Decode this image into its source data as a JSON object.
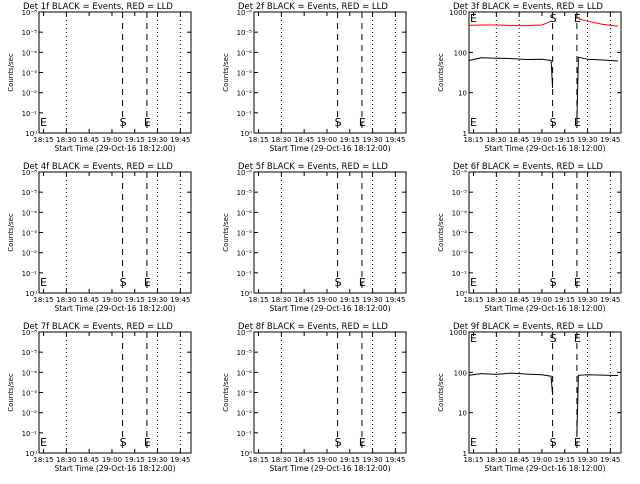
{
  "colors": {
    "background": "#ffffff",
    "events": "#000000",
    "lld": "#ff0000"
  },
  "chart_data": [
    {
      "type": "line",
      "title": "Det 1f BLACK = Events, RED = LLD",
      "xlabel": "Start Time (29-Oct-16 18:12:00)",
      "ylabel": "Counts/sec",
      "x_ticks": [
        "18:15",
        "18:30",
        "18:45",
        "19:00",
        "19:15",
        "19:30",
        "19:45"
      ],
      "y_ticks": [
        "10⁰",
        "10⁻¹",
        "10⁻²",
        "10⁻³",
        "10⁻⁴",
        "10⁻⁵",
        "10⁻⁶"
      ],
      "y_scale": "log",
      "xlim": [
        "18:12",
        "19:52"
      ],
      "ylim": [
        1,
        1000000
      ],
      "grid": false,
      "dotted_lines_x": [
        "18:30",
        "19:30",
        "19:45"
      ],
      "dashed_lines_x": [
        "19:07",
        "19:23"
      ],
      "markers": [
        {
          "label": "E",
          "x": "18:12"
        },
        {
          "label": "S",
          "x": "19:07"
        },
        {
          "label": "E",
          "x": "19:23"
        }
      ],
      "series": []
    },
    {
      "type": "line",
      "title": "Det 2f BLACK = Events, RED = LLD",
      "xlabel": "Start Time (29-Oct-16 18:12:00)",
      "ylabel": "Counts/sec",
      "x_ticks": [
        "18:15",
        "18:30",
        "18:45",
        "19:00",
        "19:15",
        "19:30",
        "19:45"
      ],
      "y_ticks": [
        "10⁰",
        "10⁻¹",
        "10⁻²",
        "10⁻³",
        "10⁻⁴",
        "10⁻⁵",
        "10⁻⁶"
      ],
      "y_scale": "log",
      "xlim": [
        "18:12",
        "19:52"
      ],
      "ylim": [
        1,
        1000000
      ],
      "grid": false,
      "dotted_lines_x": [
        "18:30",
        "19:30",
        "19:45"
      ],
      "dashed_lines_x": [
        "19:07",
        "19:23"
      ],
      "markers": [
        {
          "label": "S",
          "x": "19:07"
        },
        {
          "label": "E",
          "x": "19:23"
        }
      ],
      "series": []
    },
    {
      "type": "line",
      "title": "Det 3f BLACK = Events, RED = LLD",
      "xlabel": "Start Time (29-Oct-16 18:12:00)",
      "ylabel": "Counts/sec",
      "x_ticks": [
        "18:15",
        "18:30",
        "18:45",
        "19:00",
        "19:15",
        "19:30",
        "19:45"
      ],
      "y_ticks": [
        "1",
        "10",
        "100",
        "1000"
      ],
      "y_scale": "log",
      "xlim": [
        "18:12",
        "19:52"
      ],
      "ylim": [
        1,
        1200
      ],
      "grid": false,
      "dotted_lines_x": [
        "18:30",
        "18:45",
        "19:30",
        "19:45"
      ],
      "dashed_lines_x": [
        "19:07",
        "19:23"
      ],
      "markers": [
        {
          "label": "E",
          "x": "18:12"
        },
        {
          "label": "S",
          "x": "19:07"
        },
        {
          "label": "E",
          "x": "19:23"
        }
      ],
      "series": [
        {
          "color": "#ff0000",
          "segments": [
            {
              "x": [
                "18:12",
                "18:20",
                "18:30",
                "18:40",
                "18:50",
                "19:00",
                "19:06"
              ],
              "y": [
                550,
                560,
                560,
                540,
                540,
                560,
                700
              ]
            },
            {
              "x": [
                "19:24",
                "19:30",
                "19:40",
                "19:50"
              ],
              "y": [
                800,
                700,
                580,
                520
              ]
            }
          ]
        },
        {
          "color": "#000000",
          "segments": [
            {
              "x": [
                "18:12",
                "18:20",
                "18:30",
                "18:40",
                "18:50",
                "19:00",
                "19:06",
                "19:07"
              ],
              "y": [
                70,
                82,
                80,
                78,
                74,
                75,
                70,
                14
              ]
            },
            {
              "x": [
                "19:23",
                "19:24",
                "19:30",
                "19:40",
                "19:50"
              ],
              "y": [
                2,
                85,
                75,
                72,
                68
              ]
            }
          ]
        }
      ]
    },
    {
      "type": "line",
      "title": "Det 4f BLACK = Events, RED = LLD",
      "xlabel": "Start Time (29-Oct-16 18:12:00)",
      "ylabel": "Counts/sec",
      "x_ticks": [
        "18:15",
        "18:30",
        "18:45",
        "19:00",
        "19:15",
        "19:30",
        "19:45"
      ],
      "y_ticks": [
        "10⁰",
        "10⁻¹",
        "10⁻²",
        "10⁻³",
        "10⁻⁴",
        "10⁻⁵",
        "10⁻⁶"
      ],
      "y_scale": "log",
      "xlim": [
        "18:12",
        "19:52"
      ],
      "ylim": [
        1,
        1000000
      ],
      "grid": false,
      "dotted_lines_x": [
        "18:30",
        "19:30",
        "19:45"
      ],
      "dashed_lines_x": [
        "19:07",
        "19:23"
      ],
      "markers": [
        {
          "label": "E",
          "x": "18:12"
        },
        {
          "label": "S",
          "x": "19:07"
        },
        {
          "label": "E",
          "x": "19:23"
        }
      ],
      "series": []
    },
    {
      "type": "line",
      "title": "Det 5f BLACK = Events, RED = LLD",
      "xlabel": "Start Time (29-Oct-16 18:12:00)",
      "ylabel": "Counts/sec",
      "x_ticks": [
        "18:15",
        "18:30",
        "18:45",
        "19:00",
        "19:15",
        "19:30",
        "19:45"
      ],
      "y_ticks": [
        "10⁰",
        "10⁻¹",
        "10⁻²",
        "10⁻³",
        "10⁻⁴",
        "10⁻⁵",
        "10⁻⁶"
      ],
      "y_scale": "log",
      "xlim": [
        "18:12",
        "19:52"
      ],
      "ylim": [
        1,
        1000000
      ],
      "grid": false,
      "dotted_lines_x": [
        "18:30",
        "19:30",
        "19:45"
      ],
      "dashed_lines_x": [
        "19:07",
        "19:23"
      ],
      "markers": [
        {
          "label": "S",
          "x": "19:07"
        },
        {
          "label": "E",
          "x": "19:23"
        }
      ],
      "series": []
    },
    {
      "type": "line",
      "title": "Det 6f BLACK = Events, RED = LLD",
      "xlabel": "Start Time (29-Oct-16 18:12:00)",
      "ylabel": "Counts/sec",
      "x_ticks": [
        "18:15",
        "18:30",
        "18:45",
        "19:00",
        "19:15",
        "19:30",
        "19:45"
      ],
      "y_ticks": [
        "10⁰",
        "10⁻¹",
        "10⁻²",
        "10⁻³",
        "10⁻⁴",
        "10⁻⁵",
        "10⁻⁶"
      ],
      "y_scale": "log",
      "xlim": [
        "18:12",
        "19:52"
      ],
      "ylim": [
        1,
        1000000
      ],
      "grid": false,
      "dotted_lines_x": [
        "18:30",
        "18:45",
        "19:30",
        "19:45"
      ],
      "dashed_lines_x": [
        "19:07",
        "19:23"
      ],
      "markers": [
        {
          "label": "E",
          "x": "18:12"
        },
        {
          "label": "S",
          "x": "19:07"
        },
        {
          "label": "E",
          "x": "19:23"
        }
      ],
      "series": []
    },
    {
      "type": "line",
      "title": "Det 7f BLACK = Events, RED = LLD",
      "xlabel": "Start Time (29-Oct-16 18:12:00)",
      "ylabel": "Counts/sec",
      "x_ticks": [
        "18:15",
        "18:30",
        "18:45",
        "19:00",
        "19:15",
        "19:30",
        "19:45"
      ],
      "y_ticks": [
        "10⁰",
        "10⁻¹",
        "10⁻²",
        "10⁻³",
        "10⁻⁴",
        "10⁻⁵",
        "10⁻⁶"
      ],
      "y_scale": "log",
      "xlim": [
        "18:12",
        "19:52"
      ],
      "ylim": [
        1,
        1000000
      ],
      "grid": false,
      "dotted_lines_x": [
        "18:30",
        "19:30",
        "19:45"
      ],
      "dashed_lines_x": [
        "19:07",
        "19:23"
      ],
      "markers": [
        {
          "label": "E",
          "x": "18:12"
        },
        {
          "label": "S",
          "x": "19:07"
        },
        {
          "label": "E",
          "x": "19:23"
        }
      ],
      "series": []
    },
    {
      "type": "line",
      "title": "Det 8f BLACK = Events, RED = LLD",
      "xlabel": "Start Time (29-Oct-16 18:12:00)",
      "ylabel": "Counts/sec",
      "x_ticks": [
        "18:15",
        "18:30",
        "18:45",
        "19:00",
        "19:15",
        "19:30",
        "19:45"
      ],
      "y_ticks": [
        "10⁰",
        "10⁻¹",
        "10⁻²",
        "10⁻³",
        "10⁻⁴",
        "10⁻⁵",
        "10⁻⁶"
      ],
      "y_scale": "log",
      "xlim": [
        "18:12",
        "19:52"
      ],
      "ylim": [
        1,
        1000000
      ],
      "grid": false,
      "dotted_lines_x": [
        "18:30",
        "19:30",
        "19:45"
      ],
      "dashed_lines_x": [
        "19:07",
        "19:23"
      ],
      "markers": [
        {
          "label": "S",
          "x": "19:07"
        },
        {
          "label": "E",
          "x": "19:23"
        }
      ],
      "series": []
    },
    {
      "type": "line",
      "title": "Det 9f BLACK = Events, RED = LLD",
      "xlabel": "Start Time (29-Oct-16 18:12:00)",
      "ylabel": "Counts/sec",
      "x_ticks": [
        "18:15",
        "18:30",
        "18:45",
        "19:00",
        "19:15",
        "19:30",
        "19:45"
      ],
      "y_ticks": [
        "1",
        "10",
        "100",
        "1000"
      ],
      "y_scale": "log",
      "xlim": [
        "18:12",
        "19:52"
      ],
      "ylim": [
        1,
        1200
      ],
      "grid": false,
      "dotted_lines_x": [
        "18:30",
        "18:45",
        "19:30",
        "19:45"
      ],
      "dashed_lines_x": [
        "19:07",
        "19:23"
      ],
      "markers": [
        {
          "label": "E",
          "x": "18:12"
        },
        {
          "label": "S",
          "x": "19:07"
        },
        {
          "label": "E",
          "x": "19:23"
        }
      ],
      "series": [
        {
          "color": "#000000",
          "segments": [
            {
              "x": [
                "18:12",
                "18:20",
                "18:30",
                "18:40",
                "18:50",
                "19:00",
                "19:06",
                "19:07"
              ],
              "y": [
                95,
                105,
                100,
                108,
                102,
                98,
                90,
                30
              ]
            },
            {
              "x": [
                "19:23",
                "19:24",
                "19:30",
                "19:40",
                "19:50"
              ],
              "y": [
                3,
                95,
                98,
                96,
                94
              ]
            }
          ]
        }
      ]
    }
  ]
}
